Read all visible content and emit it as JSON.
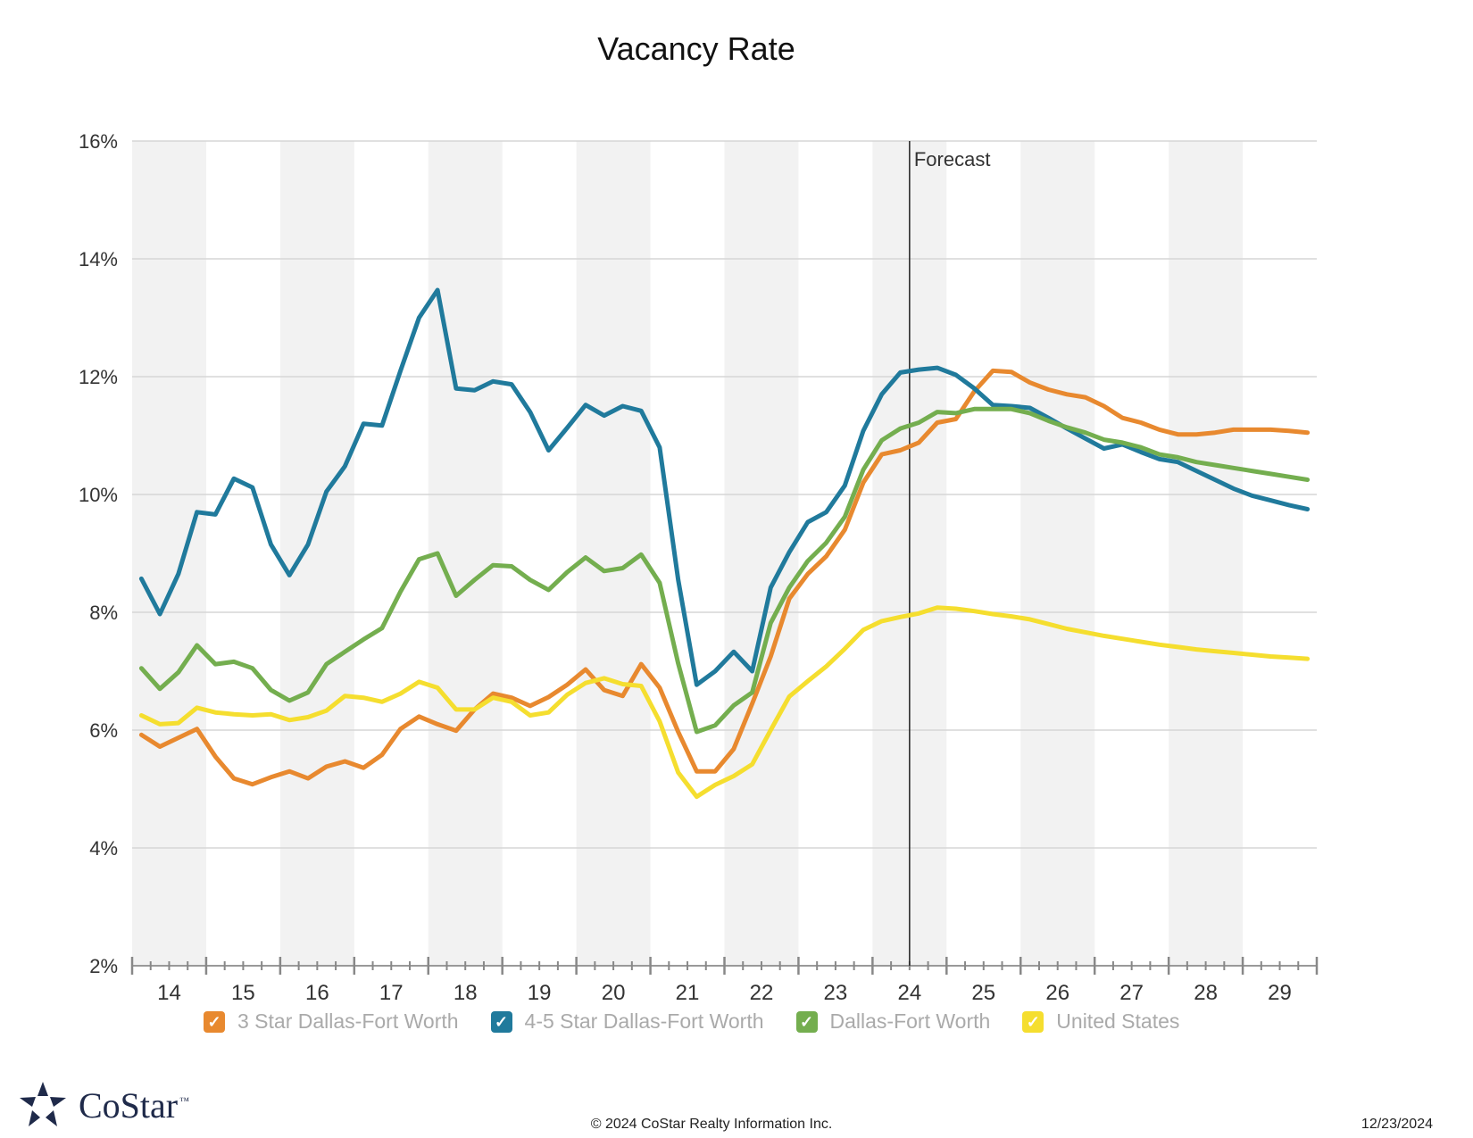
{
  "chart_data": {
    "type": "line",
    "title": "Vacancy Rate",
    "ylim": [
      2,
      16
    ],
    "y_ticks": [
      "2%",
      "4%",
      "6%",
      "8%",
      "10%",
      "12%",
      "14%",
      "16%"
    ],
    "y_tick_values": [
      2,
      4,
      6,
      8,
      10,
      12,
      14,
      16
    ],
    "x_tick_labels": [
      "14",
      "15",
      "16",
      "17",
      "18",
      "19",
      "20",
      "21",
      "22",
      "23",
      "24",
      "25",
      "26",
      "27",
      "28",
      "29"
    ],
    "x_start_year": 14,
    "grid": true,
    "forecast_label": "Forecast",
    "forecast_start": "24 Q3",
    "series": [
      {
        "name": "3 Star Dallas-Fort Worth",
        "color": "#e8892f",
        "values": [
          5.92,
          5.72,
          5.87,
          6.02,
          5.55,
          5.18,
          5.08,
          5.2,
          5.3,
          5.18,
          5.38,
          5.47,
          5.36,
          5.58,
          6.02,
          6.23,
          6.1,
          5.99,
          6.35,
          6.62,
          6.55,
          6.41,
          6.56,
          6.77,
          7.03,
          6.68,
          6.58,
          7.12,
          6.72,
          5.97,
          5.3,
          5.3,
          5.68,
          6.45,
          7.25,
          8.23,
          8.65,
          8.95,
          9.4,
          10.2,
          10.68,
          10.75,
          10.88,
          11.22,
          11.28,
          11.75,
          12.1,
          12.08,
          11.9,
          11.78,
          11.7,
          11.65,
          11.5,
          11.3,
          11.22,
          11.1,
          11.02,
          11.02,
          11.05,
          11.1,
          11.1,
          11.1,
          11.08,
          11.05
        ]
      },
      {
        "name": "4-5 Star Dallas-Fort Worth",
        "color": "#207a9c",
        "values": [
          8.57,
          7.97,
          8.65,
          9.7,
          9.66,
          10.27,
          10.12,
          9.15,
          8.63,
          9.15,
          10.05,
          10.48,
          11.2,
          11.17,
          12.1,
          13.0,
          13.47,
          11.8,
          11.77,
          11.92,
          11.87,
          11.4,
          10.75,
          11.13,
          11.52,
          11.34,
          11.5,
          11.42,
          10.8,
          8.55,
          6.77,
          7.0,
          7.33,
          7.0,
          8.42,
          9.02,
          9.53,
          9.7,
          10.15,
          11.08,
          11.7,
          12.07,
          12.12,
          12.15,
          12.03,
          11.8,
          11.52,
          11.5,
          11.47,
          11.3,
          11.12,
          10.95,
          10.78,
          10.85,
          10.72,
          10.6,
          10.55,
          10.4,
          10.25,
          10.1,
          9.98,
          9.9,
          9.82,
          9.75
        ]
      },
      {
        "name": "Dallas-Fort Worth",
        "color": "#74ae4f",
        "values": [
          7.05,
          6.7,
          6.98,
          7.44,
          7.12,
          7.16,
          7.05,
          6.68,
          6.5,
          6.64,
          7.12,
          7.33,
          7.54,
          7.73,
          8.35,
          8.9,
          9.0,
          8.28,
          8.55,
          8.8,
          8.78,
          8.55,
          8.38,
          8.68,
          8.93,
          8.7,
          8.75,
          8.98,
          8.5,
          7.13,
          5.97,
          6.08,
          6.42,
          6.64,
          7.82,
          8.42,
          8.87,
          9.18,
          9.62,
          10.42,
          10.92,
          11.12,
          11.22,
          11.4,
          11.38,
          11.45,
          11.45,
          11.45,
          11.38,
          11.25,
          11.14,
          11.05,
          10.93,
          10.88,
          10.8,
          10.68,
          10.63,
          10.55,
          10.5,
          10.45,
          10.4,
          10.35,
          10.3,
          10.25
        ]
      },
      {
        "name": "United States",
        "color": "#f5de2f",
        "values": [
          6.25,
          6.1,
          6.12,
          6.38,
          6.3,
          6.27,
          6.25,
          6.27,
          6.17,
          6.22,
          6.33,
          6.58,
          6.55,
          6.48,
          6.62,
          6.82,
          6.72,
          6.35,
          6.35,
          6.55,
          6.48,
          6.25,
          6.3,
          6.6,
          6.8,
          6.88,
          6.78,
          6.75,
          6.15,
          5.28,
          4.87,
          5.07,
          5.22,
          5.42,
          6.0,
          6.57,
          6.83,
          7.08,
          7.38,
          7.7,
          7.85,
          7.92,
          7.98,
          8.08,
          8.06,
          8.02,
          7.97,
          7.93,
          7.88,
          7.8,
          7.72,
          7.66,
          7.6,
          7.55,
          7.5,
          7.45,
          7.41,
          7.37,
          7.34,
          7.31,
          7.28,
          7.25,
          7.23,
          7.21
        ]
      }
    ]
  },
  "legend": {
    "items": [
      {
        "label": "3 Star Dallas-Fort Worth",
        "color": "#e8892f"
      },
      {
        "label": "4-5 Star Dallas-Fort Worth",
        "color": "#207a9c"
      },
      {
        "label": "Dallas-Fort Worth",
        "color": "#74ae4f"
      },
      {
        "label": "United States",
        "color": "#f5de2f"
      }
    ]
  },
  "footer": {
    "logo_text": "CoStar",
    "logo_tm": "™",
    "copyright": "© 2024 CoStar Realty Information Inc.",
    "date": "12/23/2024"
  }
}
